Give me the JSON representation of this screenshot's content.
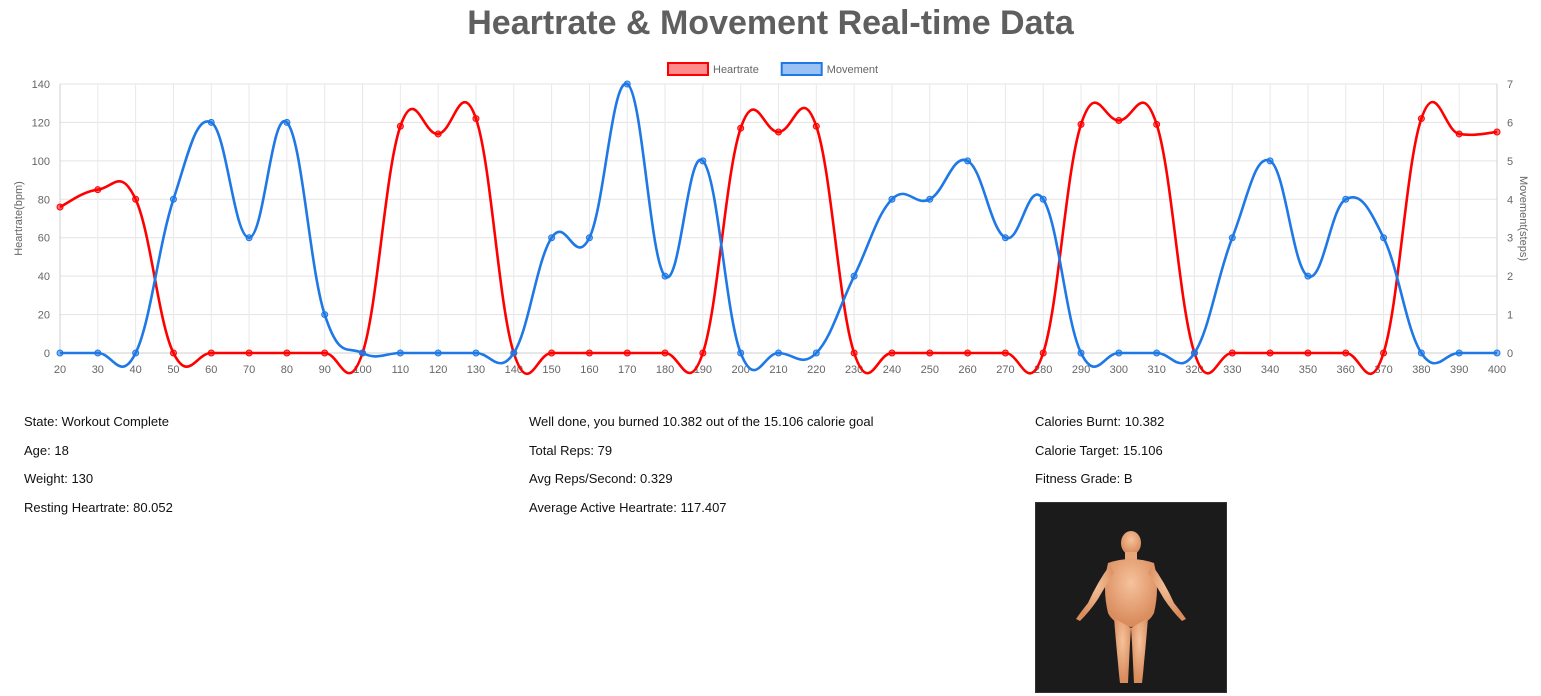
{
  "page": {
    "title": "Heartrate & Movement Real-time Data"
  },
  "chart_data": {
    "type": "line",
    "x": [
      20,
      30,
      40,
      50,
      60,
      70,
      80,
      90,
      100,
      110,
      120,
      130,
      140,
      150,
      160,
      170,
      180,
      190,
      200,
      210,
      220,
      230,
      240,
      250,
      260,
      270,
      280,
      290,
      300,
      310,
      320,
      330,
      340,
      350,
      360,
      370,
      380,
      390,
      400
    ],
    "series": [
      {
        "name": "Heartrate",
        "axis": "left",
        "color": "#ff0000",
        "values": [
          76,
          85,
          80,
          0,
          0,
          0,
          0,
          0,
          0,
          118,
          114,
          122,
          0,
          0,
          0,
          0,
          0,
          0,
          117,
          115,
          118,
          0,
          0,
          0,
          0,
          0,
          0,
          119,
          121,
          119,
          0,
          0,
          0,
          0,
          0,
          0,
          122,
          114,
          115
        ]
      },
      {
        "name": "Movement",
        "axis": "right",
        "color": "#1e78e6",
        "values": [
          0,
          0,
          0,
          4,
          6,
          3,
          6,
          1,
          0,
          0,
          0,
          0,
          0,
          3,
          3,
          7,
          2,
          5,
          0,
          0,
          0,
          2,
          4,
          4,
          5,
          3,
          4,
          0,
          0,
          0,
          0,
          3,
          5,
          2,
          4,
          3,
          0,
          0,
          0
        ]
      }
    ],
    "y_left": {
      "label": "Heartrate(bpm)",
      "min": 0,
      "max": 140,
      "ticks": [
        0,
        20,
        40,
        60,
        80,
        100,
        120,
        140
      ]
    },
    "y_right": {
      "label": "Movement(steps)",
      "min": 0,
      "max": 7,
      "ticks": [
        0,
        1,
        2,
        3,
        4,
        5,
        6,
        7
      ]
    },
    "grid": true,
    "legend_position": "top-center",
    "smooth": true
  },
  "stats": {
    "col1": [
      "State: Workout Complete",
      "Age: 18",
      "Weight: 130",
      "Resting Heartrate: 80.052"
    ],
    "col2": [
      "Well done, you burned 10.382 out of the 15.106 calorie goal",
      "Total Reps: 79",
      "Avg Reps/Second: 0.329",
      "Average Active Heartrate: 117.407"
    ],
    "col3": [
      "Calories Burnt: 10.382",
      "Calorie Target: 15.106",
      "Fitness Grade: B"
    ]
  }
}
